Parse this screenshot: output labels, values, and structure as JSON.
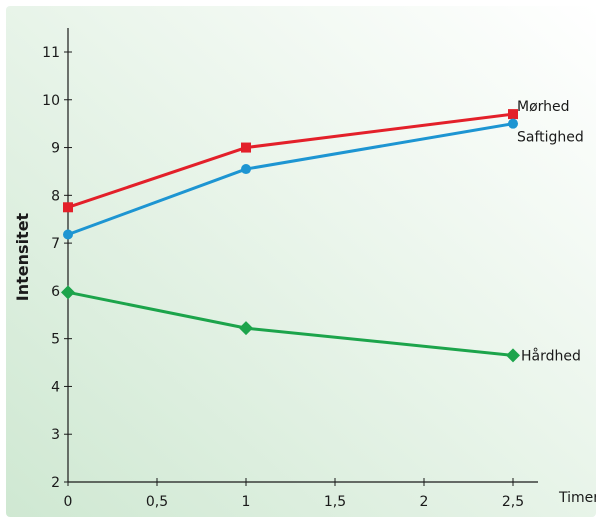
{
  "chart_data": {
    "type": "line",
    "title": "",
    "xlabel": "Timer",
    "ylabel": "Intensitet",
    "xlim": [
      0,
      2.5
    ],
    "ylim": [
      2,
      11
    ],
    "x_ticks": [
      {
        "value": 0,
        "label": "0"
      },
      {
        "value": 0.5,
        "label": "0,5"
      },
      {
        "value": 1,
        "label": "1"
      },
      {
        "value": 1.5,
        "label": "1,5"
      },
      {
        "value": 2,
        "label": "2"
      },
      {
        "value": 2.5,
        "label": "2,5"
      }
    ],
    "y_ticks": [
      {
        "value": 2,
        "label": "2"
      },
      {
        "value": 3,
        "label": "3"
      },
      {
        "value": 4,
        "label": "4"
      },
      {
        "value": 5,
        "label": "5"
      },
      {
        "value": 6,
        "label": "6"
      },
      {
        "value": 7,
        "label": "7"
      },
      {
        "value": 8,
        "label": "8"
      },
      {
        "value": 9,
        "label": "9"
      },
      {
        "value": 10,
        "label": "10"
      },
      {
        "value": 11,
        "label": "11"
      }
    ],
    "grid": false,
    "legend": "none (series labelled at line ends)",
    "background_colors": [
      "#dceedd",
      "#ffffff"
    ],
    "series": [
      {
        "name": "Mørhed",
        "color": "#e3202a",
        "marker": "square",
        "x": [
          0,
          1,
          2.5
        ],
        "y": [
          7.75,
          9.0,
          9.7
        ]
      },
      {
        "name": "Saftighed",
        "color": "#1d95d2",
        "marker": "circle",
        "x": [
          0,
          1,
          2.5
        ],
        "y": [
          7.18,
          8.55,
          9.5
        ]
      },
      {
        "name": "Hårdhed",
        "color": "#1ca44b",
        "marker": "diamond",
        "x": [
          0,
          1,
          2.5
        ],
        "y": [
          5.97,
          5.22,
          4.65
        ]
      }
    ]
  }
}
